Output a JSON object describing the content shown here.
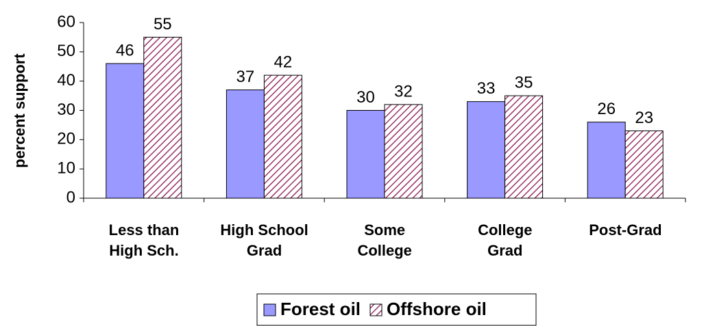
{
  "chart_data": {
    "type": "bar",
    "y_label": "percent support",
    "categories": [
      "Less than\nHigh Sch.",
      "High School\nGrad",
      "Some\nCollege",
      "College\nGrad",
      "Post-Grad"
    ],
    "series": [
      {
        "name": "Forest oil",
        "color": "#9999ff",
        "values": [
          46,
          37,
          30,
          33,
          26
        ]
      },
      {
        "name": "Offshore oil",
        "color": "#993366",
        "pattern": "hatch",
        "values": [
          55,
          42,
          32,
          35,
          23
        ]
      }
    ],
    "ylim": [
      0,
      60
    ],
    "yticks": [
      0,
      10,
      20,
      30,
      40,
      50,
      60
    ],
    "grid": false,
    "legend": "bottom"
  }
}
